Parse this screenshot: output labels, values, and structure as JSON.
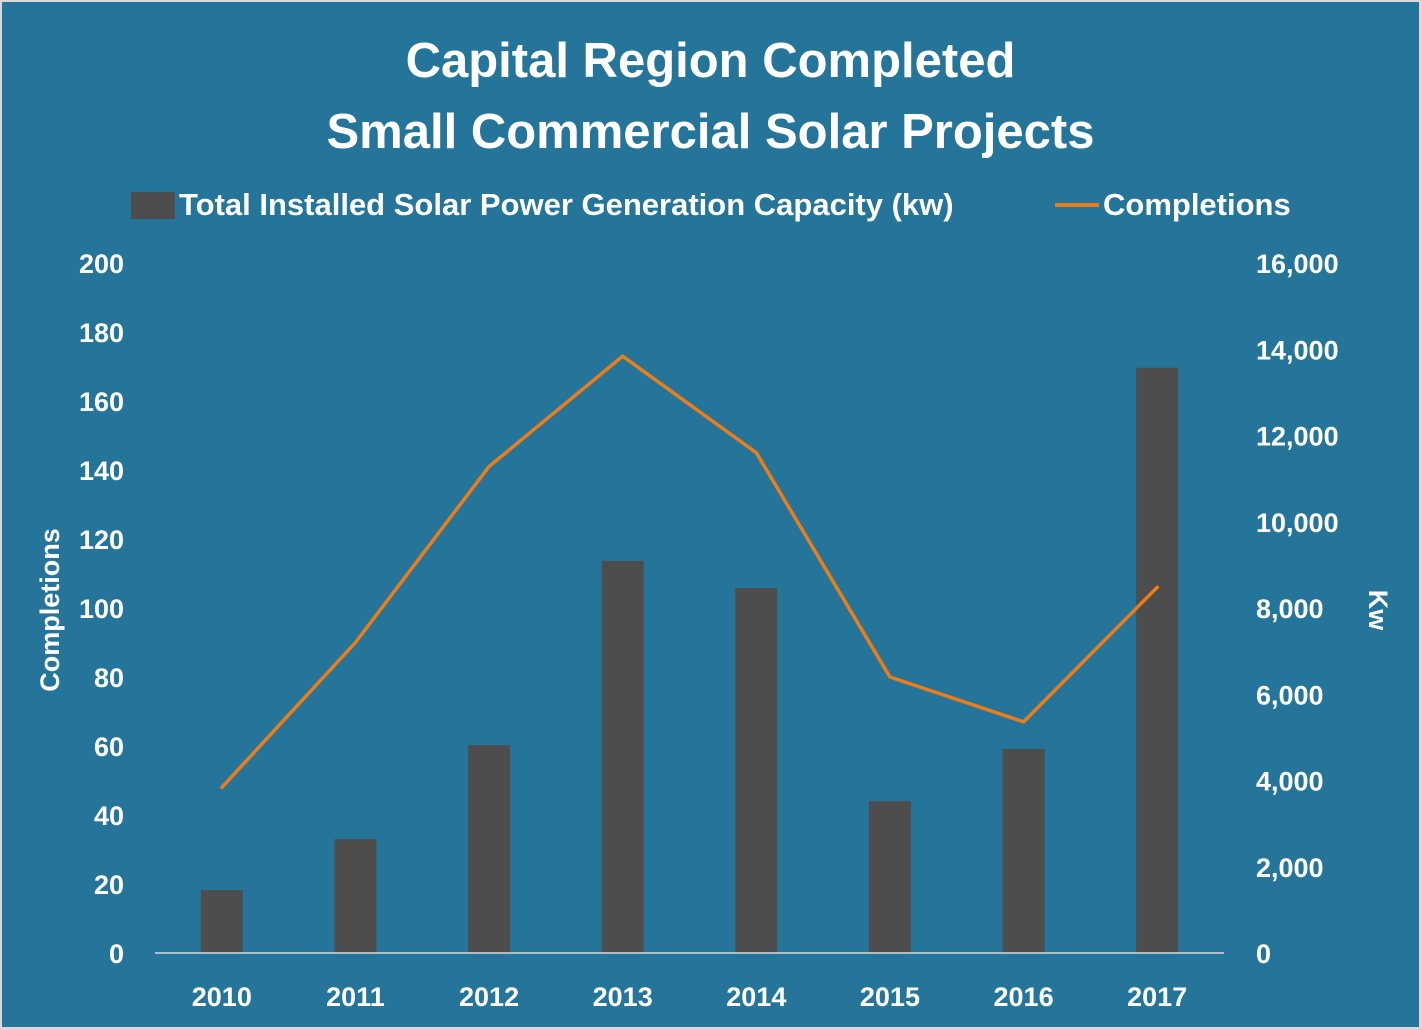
{
  "colors": {
    "background": "#247599",
    "bar": "#4d4d4d",
    "line": "#ed7d1a",
    "text": "#ffffff",
    "axis": "#d9d9d9"
  },
  "chart_data": {
    "type": "bar+line",
    "title_lines": [
      "Capital Region Completed",
      "Small Commercial Solar Projects"
    ],
    "categories": [
      "2010",
      "2011",
      "2012",
      "2013",
      "2014",
      "2015",
      "2016",
      "2017"
    ],
    "series": [
      {
        "name": "Total Installed Solar Power Generation Capacity (kw)",
        "type": "bar",
        "axis": "right",
        "values": [
          1460,
          2640,
          4820,
          9090,
          8460,
          3520,
          4730,
          13570
        ]
      },
      {
        "name": "Completions",
        "type": "line",
        "axis": "left",
        "values": [
          48,
          90,
          141,
          173,
          145,
          80,
          67,
          106
        ]
      }
    ],
    "left_axis": {
      "label": "Completions",
      "ylim": [
        0,
        200
      ],
      "ticks": [
        "0",
        "20",
        "40",
        "60",
        "80",
        "100",
        "120",
        "140",
        "160",
        "180",
        "200"
      ]
    },
    "right_axis": {
      "label": "Kw",
      "ylim": [
        0,
        16000
      ],
      "ticks": [
        "0",
        "2,000",
        "4,000",
        "6,000",
        "8,000",
        "10,000",
        "12,000",
        "14,000",
        "16,000"
      ]
    },
    "xlabel": "",
    "grid": false,
    "legend_position": "top"
  }
}
